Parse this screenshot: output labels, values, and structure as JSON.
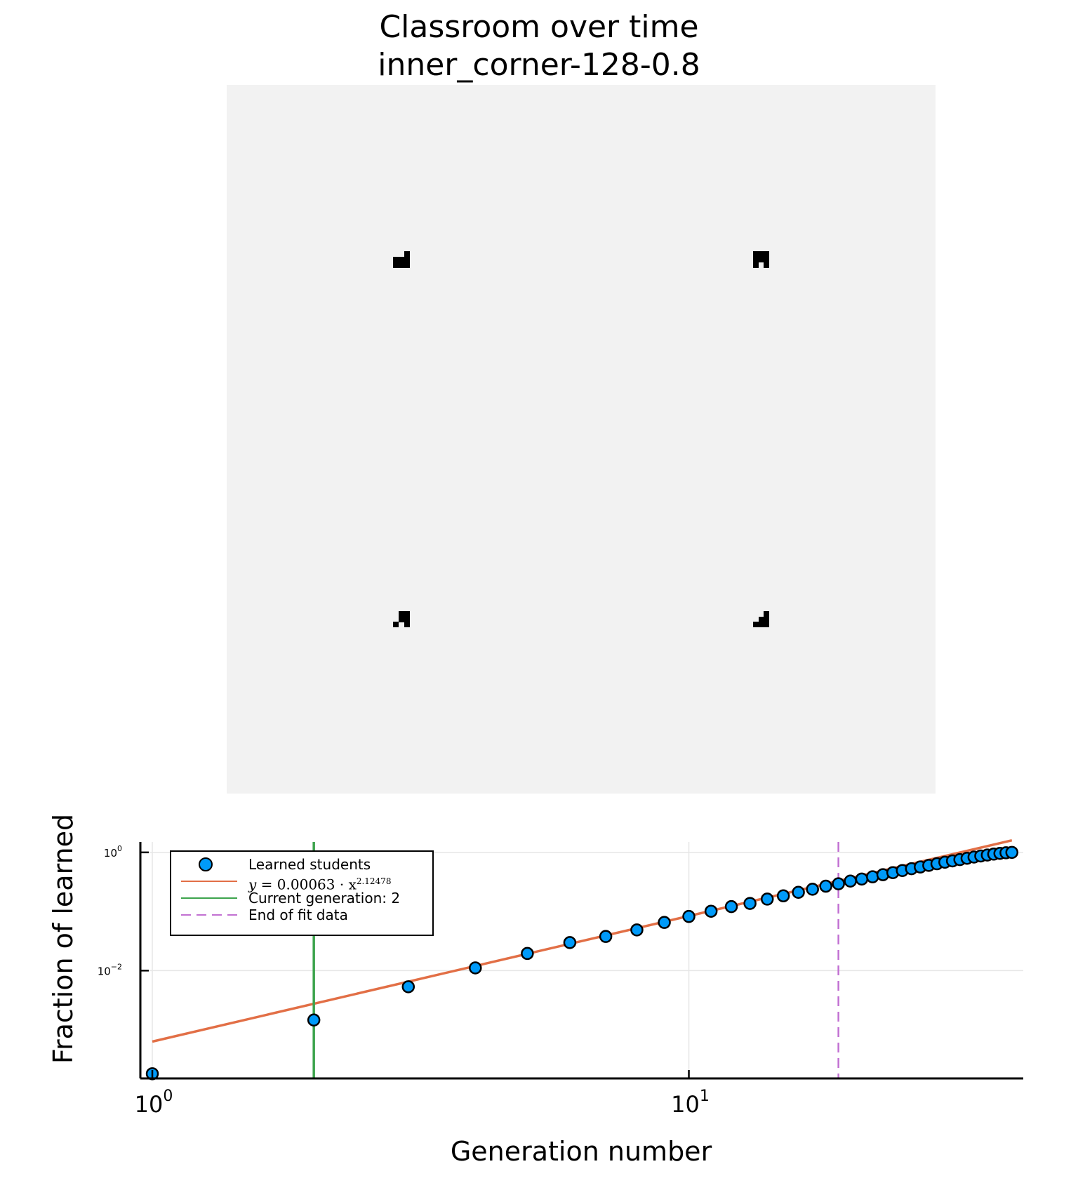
{
  "title": {
    "line1": "Classroom over time",
    "line2": "inner_corner-128-0.8"
  },
  "grid_image": {
    "size": 128,
    "background": "#f2f2f2",
    "foreground": "#000000",
    "filled_cells": [
      [
        30,
        31
      ],
      [
        31,
        31
      ],
      [
        32,
        31
      ],
      [
        32,
        30
      ],
      [
        30,
        32
      ],
      [
        31,
        32
      ],
      [
        32,
        32
      ],
      [
        95,
        30
      ],
      [
        96,
        30
      ],
      [
        97,
        30
      ],
      [
        95,
        31
      ],
      [
        96,
        31
      ],
      [
        97,
        31
      ],
      [
        95,
        32
      ],
      [
        97,
        32
      ],
      [
        31,
        95
      ],
      [
        32,
        95
      ],
      [
        31,
        96
      ],
      [
        32,
        96
      ],
      [
        30,
        97
      ],
      [
        32,
        97
      ],
      [
        97,
        95
      ],
      [
        96,
        96
      ],
      [
        97,
        96
      ],
      [
        95,
        97
      ],
      [
        96,
        97
      ],
      [
        97,
        97
      ]
    ]
  },
  "chart_data": {
    "type": "scatter",
    "xscale": "log10",
    "yscale": "log10",
    "xlabel": "Generation number",
    "ylabel": "Fraction of learned",
    "xlim": [
      0.95,
      42
    ],
    "ylim": [
      0.00015,
      1.5
    ],
    "xticks": [
      1,
      10
    ],
    "yticks": [
      0.01,
      1
    ],
    "xtick_labels": [
      {
        "base": "10",
        "exp": "0"
      },
      {
        "base": "10",
        "exp": "1"
      }
    ],
    "ytick_labels": [
      {
        "base": "10",
        "exp": "−2"
      },
      {
        "base": "10",
        "exp": "0"
      }
    ],
    "grid": true,
    "legend_position": "top-left",
    "series": [
      {
        "name": "Learned students",
        "kind": "scatter",
        "color": "#009af9",
        "x": [
          1,
          2,
          3,
          4,
          5,
          6,
          7,
          8,
          9,
          10,
          11,
          12,
          13,
          14,
          15,
          16,
          17,
          18,
          19,
          20,
          21,
          22,
          23,
          24,
          25,
          26,
          27,
          28,
          29,
          30,
          31,
          32,
          33,
          34,
          35,
          36,
          37,
          38,
          39,
          40
        ],
        "y": [
          0.00018,
          0.00146,
          0.00533,
          0.0111,
          0.0195,
          0.0298,
          0.0378,
          0.0488,
          0.0653,
          0.0824,
          0.101,
          0.121,
          0.137,
          0.162,
          0.184,
          0.211,
          0.238,
          0.268,
          0.294,
          0.327,
          0.354,
          0.386,
          0.419,
          0.454,
          0.493,
          0.529,
          0.566,
          0.603,
          0.642,
          0.681,
          0.718,
          0.756,
          0.795,
          0.833,
          0.869,
          0.903,
          0.935,
          0.962,
          0.984,
          1.0
        ]
      },
      {
        "name": "y = 0.00063 · x^2.12478",
        "name_parts": {
          "lhs": "y",
          "eq": " = 0.00063 · x",
          "exp": "2.12478"
        },
        "kind": "line",
        "color": "#e26f46",
        "coef": 0.00063,
        "power": 2.12478
      },
      {
        "name": "Current generation: 2",
        "kind": "vline",
        "color": "#3da44d",
        "x": 2
      },
      {
        "name": "End of fit data",
        "kind": "vline-dashed",
        "color": "#c271d2",
        "x": 19
      }
    ]
  }
}
